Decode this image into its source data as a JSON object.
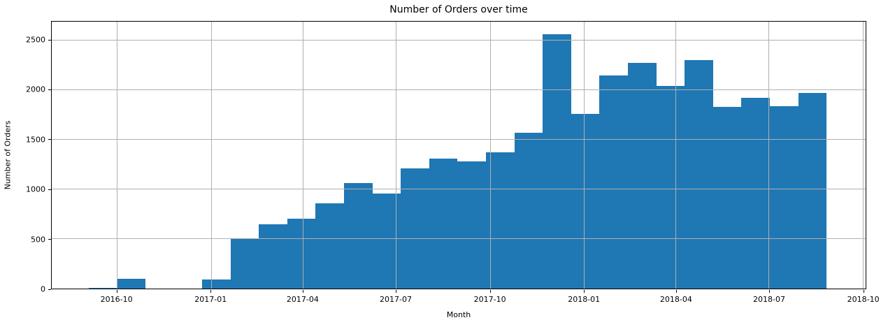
{
  "chart_data": {
    "type": "bar",
    "subtype": "histogram",
    "title": "Number of Orders over time",
    "xlabel": "Month",
    "ylabel": "Number of Orders",
    "bar_color": "#1f77b4",
    "grid_color": "#b0b0b0",
    "spine_color": "#000000",
    "grid_on": true,
    "grid_above_bars": true,
    "legend": "none",
    "x_tick_labels": [
      "2016-10",
      "2017-01",
      "2017-04",
      "2017-07",
      "2017-10",
      "2018-01",
      "2018-04",
      "2018-07",
      "2018-10"
    ],
    "y_ticks": [
      0,
      500,
      1000,
      1500,
      2000,
      2500
    ],
    "y_tick_labels": [
      "0",
      "500",
      "1000",
      "1500",
      "2000",
      "2500"
    ],
    "ylim": [
      0,
      2690
    ],
    "x_range": [
      "2016-07-29",
      "2018-10-04"
    ],
    "bins": {
      "start_date": "2016-09-03",
      "bin_days": 27.8,
      "counts": [
        10,
        100,
        0,
        0,
        95,
        510,
        645,
        705,
        860,
        1065,
        955,
        1210,
        1310,
        1280,
        1370,
        1570,
        2560,
        1760,
        2150,
        2275,
        2045,
        2300,
        1830,
        1920,
        1835,
        1970
      ]
    }
  }
}
